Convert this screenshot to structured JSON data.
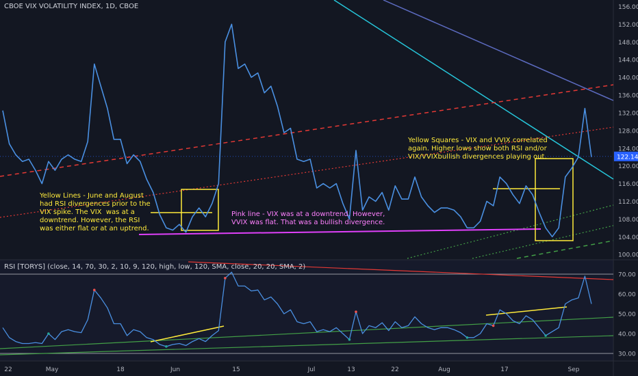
{
  "header": {
    "title": "CBOE VIX VOLATILITY INDEX, 1D, CBOE"
  },
  "rsi_panel": {
    "title": "RSI [TORYS] (close, 14, 70, 30, 2, 10, 9, 120, high, low, 120, SMA, close, 20, 20, SMA, 2)"
  },
  "annotations": {
    "yellow_lines": "Yellow Lines - June and August\nhad RSI divergences prior to the\nVIX spike. The VIX  was at a\ndowntrend. However, the RSI\nwas either flat or at an uptrend.",
    "pink_line": "Pink line - VIX was at a downtrend. However,\nVVIX was flat. That was a bullish divergence.",
    "yellow_squares": "Yellow Squares - VIX and VVIX correlated\nagain. Higher lows show both RSI and/or\nVIX/VVIXbullish divergences playing out."
  },
  "colors": {
    "background": "#131722",
    "series": "#4a90e2",
    "yellow": "#ffeb3b",
    "pink": "#e040fb",
    "cyan": "#26c6da",
    "trend_blue": "#5c6bc0",
    "red_dashed": "#e53935",
    "green": "#43a047",
    "price_tag": "#2962ff",
    "grid_text": "#b2b5be"
  },
  "chart_data": [
    {
      "type": "line",
      "name": "VVIX",
      "y_ticks": [
        "156.00",
        "152.00",
        "148.00",
        "144.00",
        "140.00",
        "136.00",
        "132.00",
        "128.00",
        "124.00",
        "120.00",
        "116.00",
        "112.00",
        "108.00",
        "104.00",
        "100.00"
      ],
      "ylim": [
        99,
        157
      ],
      "last_value": "122.14",
      "x_labels": [
        "22",
        "May",
        "18",
        "Jun",
        "15",
        "Jul",
        "13",
        "22",
        "Aug",
        "17",
        "Sep"
      ],
      "values": [
        132.5,
        125,
        122.5,
        121,
        121.5,
        119,
        116,
        121,
        119,
        121.5,
        122.5,
        121.5,
        121,
        125.5,
        143,
        138,
        133,
        126,
        126,
        120.5,
        122.5,
        121,
        117,
        114,
        109,
        106,
        105.5,
        106.8,
        105,
        108.5,
        110.5,
        108.5,
        111.5,
        116,
        148,
        152,
        142,
        143,
        140,
        141,
        136.5,
        138,
        133.5,
        127.5,
        128.5,
        121.5,
        121,
        121.5,
        115,
        116,
        115,
        116,
        111.5,
        108,
        123.5,
        110,
        113,
        112,
        114,
        110,
        115.5,
        112.5,
        112.5,
        117.5,
        113,
        111,
        109.5,
        110.5,
        110.5,
        110,
        108.5,
        106,
        106,
        107.5,
        112,
        111,
        117.5,
        116,
        113.5,
        111.5,
        115.5,
        113.5,
        109.5,
        106,
        104,
        106,
        117.5,
        119.5,
        122,
        133,
        122
      ]
    },
    {
      "type": "line",
      "name": "RSI",
      "y_ticks": [
        "70.00",
        "60.00",
        "50.00",
        "40.00",
        "30.00"
      ],
      "ylim": [
        26,
        74
      ],
      "values": [
        43,
        38,
        36,
        35,
        35,
        35.5,
        35,
        40,
        37,
        41,
        42,
        41,
        40.5,
        47,
        62,
        58,
        53,
        45,
        45,
        39,
        42,
        41,
        38,
        37,
        34.5,
        33.5,
        34.5,
        35,
        34,
        36,
        37.5,
        36,
        39,
        41.5,
        68,
        71,
        64,
        64,
        61.5,
        62,
        57,
        58.5,
        55,
        50,
        52,
        46,
        45,
        46,
        41,
        42,
        41,
        43,
        40,
        37,
        51,
        40,
        44,
        43,
        45.5,
        41.5,
        46,
        43,
        44,
        48.5,
        45,
        43,
        42,
        43,
        43,
        42,
        40.5,
        38,
        38,
        40,
        45,
        44,
        52,
        50,
        46.5,
        45,
        49,
        47,
        43,
        39,
        41,
        43,
        55,
        57,
        58,
        69,
        55
      ]
    }
  ]
}
